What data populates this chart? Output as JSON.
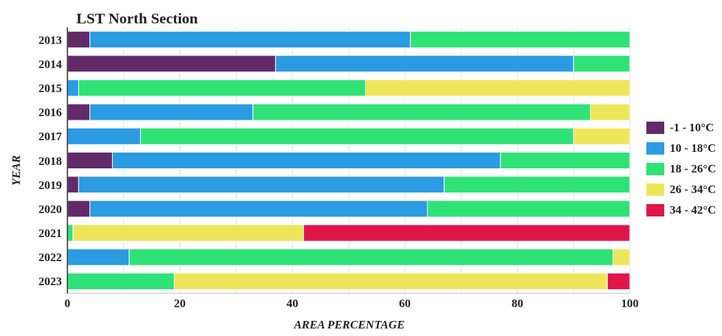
{
  "chart_data": {
    "type": "bar",
    "orientation": "horizontal",
    "stacked": true,
    "title": "LST North Section",
    "xlabel": "AREA PERCENTAGE",
    "ylabel": "YEAR",
    "categories": [
      "2013",
      "2014",
      "2015",
      "2016",
      "2017",
      "2018",
      "2019",
      "2020",
      "2021",
      "2022",
      "2023"
    ],
    "series": [
      {
        "name": "-1 - 10°C",
        "color": "#632a6a",
        "values": [
          4,
          37,
          null,
          4,
          null,
          8,
          2,
          4,
          null,
          null,
          null
        ]
      },
      {
        "name": "10 - 18°C",
        "color": "#2b9be2",
        "values": [
          57,
          53,
          2,
          29,
          13,
          69,
          65,
          60,
          null,
          11,
          null
        ]
      },
      {
        "name": "18 - 26°C",
        "color": "#2ee276",
        "values": [
          39,
          10,
          51,
          60,
          77,
          23,
          33,
          36,
          1,
          86,
          19
        ]
      },
      {
        "name": "26 - 34°C",
        "color": "#ede65a",
        "values": [
          null,
          null,
          47,
          7,
          10,
          null,
          null,
          null,
          41,
          3,
          77
        ]
      },
      {
        "name": "34 - 42°C",
        "color": "#e0164a",
        "values": [
          null,
          null,
          null,
          null,
          null,
          null,
          null,
          null,
          58,
          null,
          4
        ]
      }
    ],
    "xlim": [
      0,
      100
    ],
    "xticks": [
      0,
      {
        "value": 10,
        "label": null
      },
      20,
      {
        "value": 30,
        "label": null
      },
      40,
      {
        "value": 50,
        "label": null
      },
      60,
      {
        "value": 70,
        "label": null
      },
      80,
      {
        "value": 90,
        "label": null
      },
      100
    ],
    "grid": "x",
    "legend": "right"
  }
}
